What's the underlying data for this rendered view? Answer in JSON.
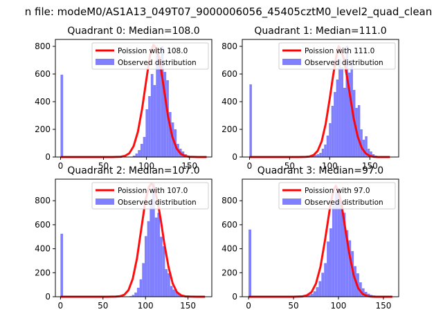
{
  "figure": {
    "suptitle": "n file: modeM0/AS1A13_049T07_9000006056_45405cztM0_level2_quad_clean"
  },
  "colors": {
    "hist": "#8080ff",
    "fit": "#ff0000",
    "axis": "#000000",
    "legend_border": "#cccccc"
  },
  "chart_data": [
    {
      "type": "bar",
      "title": "Quadrant 0: Median=108.0",
      "xlim": [
        -6,
        176
      ],
      "ylim": [
        0,
        850
      ],
      "xticks": [
        0,
        50,
        100,
        150
      ],
      "yticks": [
        0,
        200,
        400,
        600,
        800
      ],
      "legend": [
        "Poission with 108.0",
        "Observed distribution"
      ],
      "hist_edges": [
        0,
        3,
        6,
        9,
        12,
        15,
        18,
        21,
        24,
        27,
        30,
        33,
        36,
        39,
        42,
        45,
        48,
        51,
        54,
        57,
        60,
        63,
        66,
        69,
        72,
        75,
        78,
        81,
        84,
        87,
        90,
        93,
        96,
        99,
        102,
        105,
        108,
        111,
        114,
        117,
        120,
        123,
        126,
        129,
        132,
        135,
        138,
        141,
        144,
        147,
        150,
        153,
        156,
        159,
        162,
        165,
        168,
        171
      ],
      "hist_values": [
        595,
        0,
        0,
        0,
        0,
        0,
        0,
        0,
        0,
        0,
        0,
        0,
        0,
        0,
        0,
        0,
        0,
        0,
        0,
        0,
        0,
        0,
        0,
        0,
        0,
        0,
        0,
        0,
        10,
        25,
        50,
        95,
        145,
        345,
        440,
        600,
        520,
        780,
        720,
        800,
        615,
        555,
        325,
        250,
        200,
        95,
        60,
        40,
        20,
        10,
        5,
        3,
        2,
        0,
        0,
        0,
        0
      ],
      "fit_x": [
        0,
        60,
        70,
        75,
        80,
        85,
        90,
        95,
        100,
        104,
        108,
        112,
        116,
        120,
        125,
        130,
        135,
        140,
        145,
        150,
        160,
        170
      ],
      "fit_y": [
        0,
        0,
        2,
        8,
        27,
        78,
        182,
        352,
        565,
        733,
        810,
        784,
        670,
        505,
        295,
        147,
        62,
        22,
        7,
        2,
        0,
        0
      ]
    },
    {
      "type": "bar",
      "title": "Quadrant 1: Median=111.0",
      "xlim": [
        -9,
        186
      ],
      "ylim": [
        0,
        850
      ],
      "xticks": [
        0,
        50,
        100,
        150
      ],
      "yticks": [
        0,
        200,
        400,
        600,
        800
      ],
      "legend": [
        "Poission with 111.0",
        "Observed distribution"
      ],
      "hist_edges": [
        0,
        3,
        6,
        9,
        12,
        15,
        18,
        21,
        24,
        27,
        30,
        33,
        36,
        39,
        42,
        45,
        48,
        51,
        54,
        57,
        60,
        63,
        66,
        69,
        72,
        75,
        78,
        81,
        84,
        87,
        90,
        93,
        96,
        99,
        102,
        105,
        108,
        111,
        114,
        117,
        120,
        123,
        126,
        129,
        132,
        135,
        138,
        141,
        144,
        147,
        150,
        153,
        156,
        159,
        162,
        165,
        168,
        171,
        174,
        177
      ],
      "hist_values": [
        525,
        0,
        0,
        0,
        0,
        0,
        0,
        0,
        0,
        0,
        0,
        0,
        0,
        0,
        0,
        0,
        0,
        0,
        0,
        0,
        0,
        0,
        0,
        0,
        0,
        5,
        10,
        15,
        20,
        30,
        60,
        90,
        155,
        245,
        370,
        470,
        560,
        710,
        650,
        500,
        805,
        610,
        700,
        485,
        355,
        375,
        200,
        125,
        150,
        60,
        40,
        20,
        10,
        5,
        2,
        0,
        0,
        0,
        0
      ],
      "fit_x": [
        0,
        60,
        70,
        75,
        80,
        85,
        90,
        95,
        100,
        104,
        108,
        111,
        114,
        118,
        122,
        126,
        130,
        135,
        140,
        145,
        150,
        155,
        160,
        175
      ],
      "fit_y": [
        0,
        0,
        1,
        4,
        14,
        44,
        113,
        239,
        420,
        580,
        720,
        800,
        774,
        700,
        565,
        420,
        275,
        146,
        65,
        25,
        8,
        2,
        0,
        0
      ]
    },
    {
      "type": "bar",
      "title": "Quadrant 2: Median=107.0",
      "xlim": [
        -6,
        178
      ],
      "ylim": [
        0,
        980
      ],
      "xticks": [
        0,
        50,
        100,
        150
      ],
      "yticks": [
        0,
        200,
        400,
        600,
        800
      ],
      "legend": [
        "Poission with 107.0",
        "Observed distribution"
      ],
      "hist_edges": [
        0,
        3,
        6,
        9,
        12,
        15,
        18,
        21,
        24,
        27,
        30,
        33,
        36,
        39,
        42,
        45,
        48,
        51,
        54,
        57,
        60,
        63,
        66,
        69,
        72,
        75,
        78,
        81,
        84,
        87,
        90,
        93,
        96,
        99,
        102,
        105,
        108,
        111,
        114,
        117,
        120,
        123,
        126,
        129,
        132,
        135,
        138,
        141,
        144,
        147,
        150,
        153,
        156,
        159,
        162,
        165,
        168,
        171
      ],
      "hist_values": [
        525,
        0,
        0,
        0,
        0,
        0,
        0,
        0,
        0,
        0,
        0,
        0,
        0,
        0,
        0,
        0,
        0,
        0,
        0,
        0,
        0,
        0,
        0,
        0,
        0,
        0,
        2,
        5,
        15,
        35,
        75,
        145,
        280,
        505,
        630,
        780,
        945,
        660,
        700,
        500,
        420,
        230,
        195,
        90,
        60,
        45,
        25,
        15,
        5,
        2,
        0,
        0,
        0,
        0,
        0,
        0,
        0
      ],
      "fit_x": [
        0,
        55,
        65,
        70,
        75,
        80,
        85,
        90,
        95,
        100,
        104,
        107,
        110,
        114,
        118,
        122,
        127,
        132,
        137,
        142,
        147,
        152,
        160,
        170
      ],
      "fit_y": [
        0,
        0,
        1,
        4,
        16,
        55,
        150,
        320,
        565,
        805,
        915,
        945,
        915,
        805,
        640,
        450,
        250,
        110,
        38,
        11,
        3,
        1,
        0,
        0
      ]
    },
    {
      "type": "bar",
      "title": "Quadrant 3: Median=97.0",
      "xlim": [
        -7,
        167
      ],
      "ylim": [
        0,
        980
      ],
      "xticks": [
        0,
        50,
        100,
        150
      ],
      "yticks": [
        0,
        200,
        400,
        600,
        800
      ],
      "legend": [
        "Poission with 97.0",
        "Observed distribution"
      ],
      "hist_edges": [
        0,
        3,
        6,
        9,
        12,
        15,
        18,
        21,
        24,
        27,
        30,
        33,
        36,
        39,
        42,
        45,
        48,
        51,
        54,
        57,
        60,
        63,
        66,
        69,
        72,
        75,
        78,
        81,
        84,
        87,
        90,
        93,
        96,
        99,
        102,
        105,
        108,
        111,
        114,
        117,
        120,
        123,
        126,
        129,
        132,
        135,
        138,
        141,
        144,
        147,
        150,
        153,
        156,
        159,
        162
      ],
      "hist_values": [
        560,
        0,
        0,
        0,
        0,
        0,
        0,
        0,
        0,
        0,
        0,
        0,
        0,
        0,
        0,
        0,
        0,
        0,
        0,
        3,
        5,
        10,
        15,
        25,
        45,
        80,
        130,
        200,
        280,
        460,
        570,
        760,
        870,
        890,
        785,
        700,
        555,
        470,
        380,
        255,
        195,
        120,
        70,
        40,
        25,
        15,
        10,
        5,
        2,
        0,
        0,
        0,
        0,
        0
      ],
      "fit_x": [
        0,
        50,
        55,
        60,
        65,
        70,
        75,
        80,
        85,
        90,
        94,
        97,
        100,
        104,
        108,
        112,
        117,
        122,
        127,
        132,
        137,
        142,
        150,
        160
      ],
      "fit_y": [
        0,
        0,
        1,
        3,
        12,
        38,
        110,
        250,
        470,
        715,
        880,
        925,
        880,
        740,
        545,
        360,
        175,
        70,
        23,
        6,
        2,
        0,
        0,
        0
      ]
    }
  ]
}
